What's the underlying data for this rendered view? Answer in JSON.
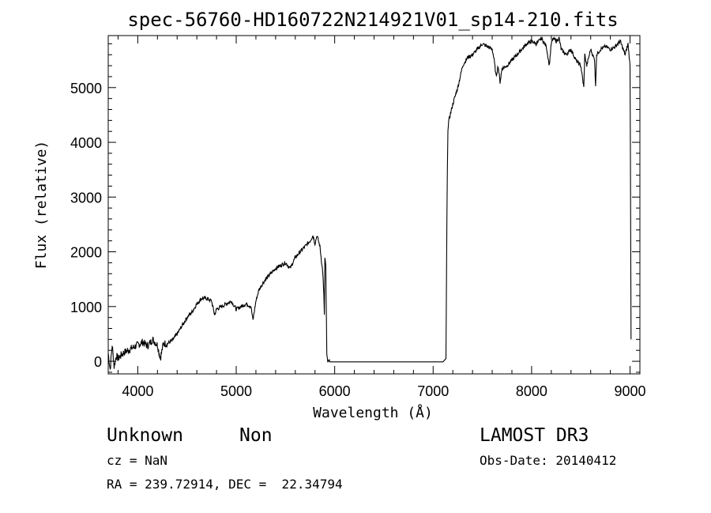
{
  "chart_data": {
    "type": "line",
    "title": "spec-56760-HD160722N214921V01_sp14-210.fits",
    "xlabel": "Wavelength (Å)",
    "ylabel": "Flux (relative)",
    "xlim": [
      3700,
      9100
    ],
    "ylim": [
      -230,
      5950
    ],
    "x_ticks": [
      4000,
      5000,
      6000,
      7000,
      8000,
      9000
    ],
    "x_tick_labels": [
      "4000",
      "5000",
      "6000",
      "7000",
      "8000",
      "9000"
    ],
    "y_ticks": [
      0,
      1000,
      2000,
      3000,
      4000,
      5000
    ],
    "y_tick_labels": [
      "0",
      "1000",
      "2000",
      "3000",
      "4000",
      "5000"
    ],
    "grid": false,
    "series": [
      {
        "x": [
          3700,
          3720,
          3740,
          3760,
          3780,
          3800,
          3850,
          3900,
          3950,
          4000,
          4050,
          4100,
          4150,
          4200,
          4230,
          4260,
          4300,
          4350,
          4400,
          4450,
          4500,
          4550,
          4600,
          4650,
          4700,
          4750,
          4780,
          4800,
          4850,
          4900,
          4950,
          5000,
          5050,
          5100,
          5150,
          5170,
          5200,
          5230,
          5260,
          5300,
          5350,
          5400,
          5450,
          5500,
          5550,
          5600,
          5650,
          5700,
          5750,
          5780,
          5800,
          5820,
          5850,
          5880,
          5890,
          5895,
          5900,
          5910,
          5920,
          5930,
          5950,
          6000,
          6500,
          7000,
          7100,
          7130,
          7140,
          7145,
          7150,
          7160,
          7200,
          7250,
          7300,
          7350,
          7400,
          7450,
          7500,
          7550,
          7600,
          7620,
          7640,
          7660,
          7680,
          7700,
          7750,
          7800,
          7850,
          7900,
          7950,
          8000,
          8050,
          8100,
          8150,
          8180,
          8200,
          8220,
          8250,
          8280,
          8300,
          8350,
          8400,
          8450,
          8500,
          8530,
          8540,
          8560,
          8600,
          8640,
          8650,
          8660,
          8700,
          8750,
          8800,
          8850,
          8900,
          8950,
          8980,
          9000,
          9010
        ],
        "y": [
          150,
          -150,
          300,
          -100,
          100,
          50,
          150,
          200,
          250,
          300,
          350,
          280,
          400,
          300,
          50,
          330,
          320,
          380,
          500,
          650,
          800,
          900,
          1050,
          1150,
          1150,
          1100,
          850,
          950,
          1000,
          1050,
          1100,
          950,
          1000,
          1050,
          1000,
          750,
          1100,
          1300,
          1400,
          1500,
          1600,
          1700,
          1750,
          1800,
          1700,
          1900,
          2000,
          2100,
          2200,
          2300,
          2150,
          2300,
          2100,
          1600,
          1200,
          850,
          1900,
          1750,
          100,
          -10,
          -10,
          -10,
          -10,
          -10,
          -10,
          50,
          2600,
          3500,
          4250,
          4400,
          4700,
          5000,
          5400,
          5550,
          5600,
          5700,
          5800,
          5750,
          5700,
          5500,
          5200,
          5400,
          5100,
          5350,
          5400,
          5500,
          5600,
          5700,
          5800,
          5850,
          5800,
          5900,
          5750,
          5400,
          5800,
          5900,
          5850,
          5900,
          5700,
          5600,
          5700,
          5500,
          5400,
          5000,
          5600,
          5400,
          5700,
          5500,
          5000,
          5600,
          5700,
          5750,
          5700,
          5750,
          5850,
          5600,
          5800,
          5400,
          400
        ]
      }
    ]
  },
  "info": {
    "object_class": "Unknown",
    "subclass": "Non",
    "redshift": "cz = NaN",
    "coords": "RA = 239.72914, DEC =  22.34794",
    "survey": "LAMOST DR3",
    "obs_date": "Obs-Date: 20140412"
  }
}
